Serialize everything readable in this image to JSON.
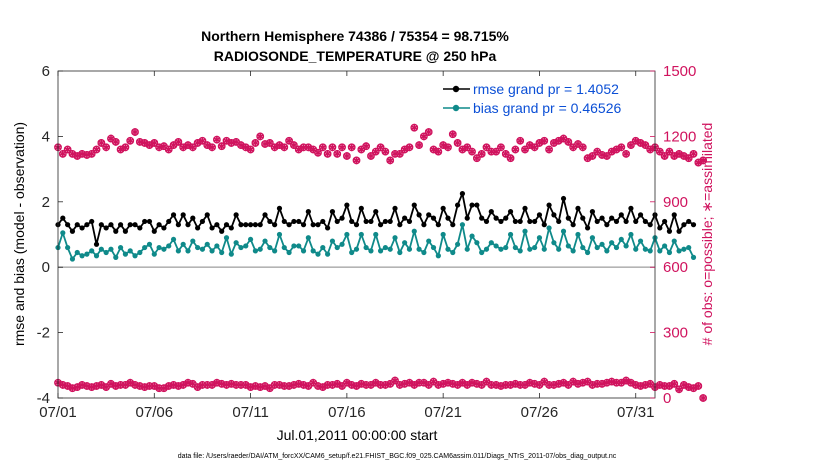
{
  "chart_data": {
    "type": "line",
    "title_lines": [
      "Northern Hemisphere 74386 / 75354 = 98.715%",
      "RADIOSONDE_TEMPERATURE @ 250 hPa"
    ],
    "xlabel": "Jul.01,2011 00:00:00 start",
    "ylabel_left": "rmse and bias (model - observation)",
    "ylabel_right": "# of obs: o=possible; ∗=assimilated",
    "xlim": [
      0,
      31
    ],
    "ylim_left": [
      -4,
      6
    ],
    "ylim_right": [
      0,
      1500
    ],
    "x_ticks": [
      {
        "x": 0,
        "label": "07/01"
      },
      {
        "x": 5,
        "label": "07/06"
      },
      {
        "x": 10,
        "label": "07/11"
      },
      {
        "x": 15,
        "label": "07/16"
      },
      {
        "x": 20,
        "label": "07/21"
      },
      {
        "x": 25,
        "label": "07/26"
      },
      {
        "x": 30,
        "label": "07/31"
      }
    ],
    "y_ticks_left": [
      -4,
      -2,
      0,
      2,
      4,
      6
    ],
    "y_ticks_right": [
      0,
      300,
      600,
      900,
      1200,
      1500
    ],
    "legend": [
      {
        "label": "rmse grand pr = 1.4052",
        "color": "#000000"
      },
      {
        "label": "bias grand pr = 0.46526",
        "color": "#0f8a8a"
      }
    ],
    "colors": {
      "rmse": "#000000",
      "bias": "#0f8a8a",
      "obs": "#d0135e",
      "zero_line": "#b4b4b4"
    },
    "x_step": 0.25,
    "series": [
      {
        "name": "rmse",
        "values": [
          1.3,
          1.5,
          1.3,
          1.1,
          1.3,
          1.2,
          1.3,
          1.4,
          0.7,
          1.3,
          1.2,
          1.3,
          1.1,
          1.3,
          1.1,
          1.3,
          1.3,
          1.2,
          1.4,
          1.4,
          1.1,
          1.3,
          1.2,
          1.4,
          1.6,
          1.3,
          1.6,
          1.3,
          1.5,
          1.2,
          1.4,
          1.6,
          1.2,
          1.3,
          1.1,
          1.3,
          1.2,
          1.6,
          1.3,
          1.3,
          1.3,
          1.3,
          1.3,
          1.6,
          1.4,
          1.3,
          1.8,
          1.4,
          1.3,
          1.4,
          1.4,
          1.3,
          1.7,
          1.3,
          1.3,
          1.4,
          1.2,
          1.7,
          1.4,
          1.5,
          1.9,
          1.4,
          1.3,
          1.8,
          1.4,
          1.4,
          1.7,
          1.3,
          1.4,
          1.4,
          1.8,
          1.3,
          1.5,
          1.4,
          1.9,
          1.6,
          1.3,
          1.6,
          1.5,
          1.3,
          1.8,
          1.5,
          1.3,
          1.9,
          2.25,
          1.5,
          1.9,
          1.9,
          1.5,
          1.4,
          1.7,
          1.5,
          1.4,
          1.5,
          1.7,
          1.4,
          1.4,
          1.8,
          1.4,
          1.4,
          1.6,
          1.3,
          1.9,
          1.6,
          1.4,
          2.1,
          1.5,
          1.3,
          1.8,
          1.5,
          1.2,
          1.7,
          1.4,
          1.5,
          1.3,
          1.5,
          1.4,
          1.6,
          1.4,
          1.8,
          1.4,
          1.6,
          1.4,
          1.3,
          1.6,
          1.2,
          1.4,
          1.1,
          1.6,
          1.1,
          1.3,
          1.4,
          1.3
        ]
      },
      {
        "name": "bias",
        "values": [
          0.6,
          1.05,
          0.6,
          0.25,
          0.45,
          0.35,
          0.4,
          0.5,
          0.35,
          0.55,
          0.45,
          0.55,
          0.3,
          0.6,
          0.4,
          0.5,
          0.35,
          0.45,
          0.6,
          0.7,
          0.4,
          0.6,
          0.55,
          0.65,
          0.85,
          0.5,
          0.7,
          0.5,
          0.8,
          0.6,
          0.55,
          0.7,
          0.5,
          0.65,
          0.45,
          0.9,
          0.4,
          0.75,
          0.6,
          0.65,
          0.85,
          0.5,
          0.55,
          0.8,
          0.6,
          0.5,
          1.0,
          0.6,
          0.45,
          0.65,
          0.65,
          0.5,
          0.9,
          0.5,
          0.4,
          0.6,
          0.4,
          0.8,
          0.6,
          0.7,
          1.0,
          0.45,
          0.55,
          1.0,
          0.6,
          0.5,
          1.0,
          0.5,
          0.6,
          0.55,
          0.9,
          0.45,
          0.75,
          0.55,
          1.1,
          0.55,
          0.45,
          0.8,
          0.6,
          0.35,
          1.0,
          0.55,
          0.45,
          0.7,
          1.3,
          0.55,
          0.95,
          0.75,
          0.45,
          0.55,
          0.75,
          0.65,
          0.55,
          0.6,
          1.0,
          0.6,
          0.5,
          1.1,
          0.55,
          0.6,
          0.9,
          0.55,
          1.2,
          0.75,
          0.55,
          1.1,
          0.65,
          0.5,
          1.0,
          0.6,
          0.45,
          0.9,
          0.6,
          0.7,
          0.5,
          0.75,
          0.6,
          0.85,
          0.65,
          1.0,
          0.55,
          0.8,
          0.55,
          0.5,
          0.9,
          0.5,
          0.65,
          0.45,
          0.8,
          0.5,
          0.55,
          0.6,
          0.3
        ]
      },
      {
        "name": "possible",
        "axis": "right",
        "values": [
          1150,
          1120,
          1140,
          1120,
          1110,
          1120,
          1115,
          1120,
          1140,
          1170,
          1150,
          1190,
          1175,
          1140,
          1150,
          1180,
          1220,
          1175,
          1170,
          1160,
          1170,
          1150,
          1155,
          1140,
          1160,
          1175,
          1150,
          1160,
          1150,
          1170,
          1180,
          1160,
          1150,
          1185,
          1155,
          1180,
          1170,
          1175,
          1160,
          1150,
          1140,
          1170,
          1200,
          1165,
          1170,
          1150,
          1160,
          1150,
          1180,
          1160,
          1140,
          1150,
          1150,
          1140,
          1125,
          1150,
          1120,
          1150,
          1120,
          1150,
          1110,
          1150,
          1090,
          1140,
          1155,
          1110,
          1130,
          1150,
          1130,
          1090,
          1120,
          1120,
          1140,
          1150,
          1240,
          1160,
          1200,
          1220,
          1140,
          1130,
          1160,
          1150,
          1210,
          1170,
          1140,
          1150,
          1130,
          1100,
          1120,
          1150,
          1130,
          1130,
          1150,
          1120,
          1100,
          1140,
          1180,
          1140,
          1160,
          1150,
          1170,
          1180,
          1140,
          1170,
          1180,
          1190,
          1175,
          1150,
          1165,
          1150,
          1100,
          1110,
          1130,
          1115,
          1110,
          1130,
          1140,
          1150,
          1120,
          1160,
          1180,
          1170,
          1160,
          1140,
          1150,
          1130,
          1110,
          1130,
          1110,
          1120,
          1110,
          1100,
          1120,
          1080,
          1090
        ]
      },
      {
        "name": "assimilated",
        "axis": "right",
        "values": [
          70,
          60,
          55,
          45,
          50,
          60,
          55,
          50,
          55,
          60,
          50,
          65,
          55,
          60,
          60,
          70,
          60,
          55,
          50,
          55,
          55,
          45,
          45,
          55,
          60,
          55,
          60,
          70,
          65,
          50,
          60,
          60,
          60,
          70,
          65,
          60,
          65,
          60,
          60,
          60,
          50,
          55,
          50,
          55,
          45,
          60,
          60,
          55,
          55,
          60,
          65,
          60,
          55,
          70,
          55,
          50,
          60,
          60,
          65,
          55,
          70,
          60,
          55,
          65,
          60,
          60,
          70,
          60,
          60,
          65,
          80,
          60,
          65,
          70,
          60,
          70,
          70,
          60,
          75,
          60,
          65,
          70,
          65,
          60,
          70,
          60,
          70,
          65,
          60,
          75,
          60,
          60,
          55,
          60,
          60,
          65,
          60,
          60,
          70,
          65,
          60,
          75,
          60,
          60,
          65,
          70,
          60,
          75,
          65,
          70,
          75,
          60,
          65,
          65,
          70,
          75,
          70,
          70,
          80,
          70,
          60,
          55,
          60,
          65,
          50,
          60,
          55,
          55,
          65,
          40,
          60,
          50,
          45,
          55,
          0
        ]
      }
    ],
    "footnote": "data file: /Users/raeder/DAI/ATM_forcXX/CAM6_setup/f.e21.FHIST_BGC.f09_025.CAM6assim.011/Diags_NTrS_2011-07/obs_diag_output.nc"
  }
}
